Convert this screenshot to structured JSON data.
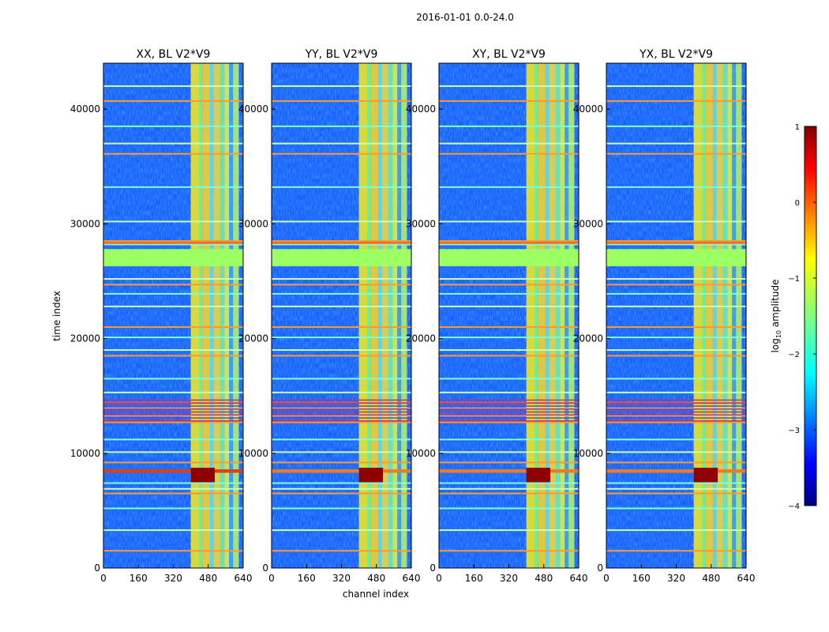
{
  "chart_data": {
    "type": "heatmap",
    "suptitle": "2016-01-01 0.0-24.0",
    "xlabel": "channel index",
    "ylabel": "time index",
    "xlim": [
      0,
      640
    ],
    "ylim": [
      0,
      44000
    ],
    "x_ticks": [
      "0",
      "160",
      "320",
      "480",
      "640"
    ],
    "y_ticks": [
      "0",
      "10000",
      "20000",
      "30000",
      "40000"
    ],
    "colormap": "jet",
    "colorbar": {
      "label_prefix": "log",
      "label_sub": "10",
      "label_suffix": " amplitude",
      "range": [
        -4,
        1
      ],
      "ticks": [
        "1",
        "0",
        "−1",
        "−2",
        "−3",
        "−4"
      ]
    },
    "panels": [
      {
        "title": "XX, BL V2*V9",
        "rfi_band": [
          400,
          620
        ]
      },
      {
        "title": "YY, BL V2*V9",
        "rfi_band": [
          400,
          620
        ]
      },
      {
        "title": "XY, BL V2*V9",
        "rfi_band": [
          400,
          620
        ]
      },
      {
        "title": "YX, BL V2*V9",
        "rfi_band": [
          400,
          620
        ]
      }
    ],
    "features": {
      "flagged_time_range": [
        26300,
        27800
      ],
      "strong_rfi_times": [
        8300,
        8600
      ],
      "horizontal_lines": [
        1500,
        3300,
        5200,
        6500,
        6900,
        7400,
        9200,
        10100,
        11200,
        12700,
        13300,
        13900,
        14400,
        15300,
        16500,
        18500,
        19000,
        20100,
        21000,
        22800,
        23900,
        24700,
        25200,
        28200,
        28500,
        30200,
        33200,
        36100,
        37000,
        38500,
        40700,
        42000
      ]
    }
  }
}
